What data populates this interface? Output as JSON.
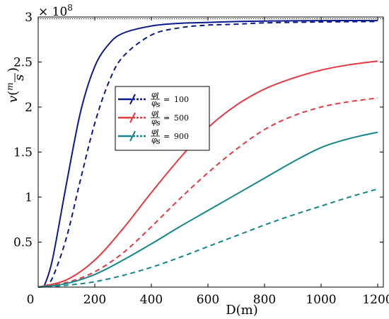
{
  "chart_data": {
    "type": "line",
    "title": "",
    "xlabel": "D(m)",
    "ylabel": "v(m/s)",
    "ylabel_parts": {
      "v": "v",
      "open": "(",
      "num": "m",
      "den": "s",
      "close": ")"
    },
    "multiplier": "× 10",
    "multiplier_exp": "8",
    "xlim": [
      0,
      1220
    ],
    "ylim": [
      0,
      3.0
    ],
    "xticks": [
      0,
      200,
      400,
      600,
      800,
      1000,
      1200
    ],
    "xtick_labels": [
      "0",
      "200",
      "400",
      "600",
      "800",
      "1000",
      "1200"
    ],
    "yticks": [
      0.5,
      1.0,
      1.5,
      2.0,
      2.5,
      3.0
    ],
    "ytick_labels": [
      "0.5",
      "1",
      "1.5",
      "2",
      "2.5",
      "3"
    ],
    "reference_line": {
      "y": 2.98,
      "style": "dotted"
    },
    "legend_position": "center-left",
    "legend": [
      {
        "value": "100",
        "color": "#0a1a8c"
      },
      {
        "value": "500",
        "color": "#e8383d"
      },
      {
        "value": "900",
        "color": "#12868a"
      }
    ],
    "legend_ratio": {
      "num": "φ",
      "num_sub": "l",
      "den": "φ",
      "den_sub": "s",
      "eq": "="
    },
    "series": [
      {
        "name": "",
        "color": "#0a1a8c",
        "dash": "solid",
        "x": [
          20,
          50,
          100,
          150,
          200,
          250,
          300,
          400,
          500,
          600,
          700,
          800,
          1000,
          1200
        ],
        "y": [
          0.0,
          0.3,
          1.15,
          1.95,
          2.45,
          2.7,
          2.82,
          2.9,
          2.93,
          2.94,
          2.95,
          2.955,
          2.96,
          2.96
        ]
      },
      {
        "name": "",
        "color": "#0a1a8c",
        "dash": "dashed",
        "x": [
          20,
          50,
          100,
          150,
          200,
          250,
          300,
          400,
          500,
          600,
          700,
          800,
          1000,
          1200
        ],
        "y": [
          0.0,
          0.1,
          0.55,
          1.2,
          1.82,
          2.28,
          2.56,
          2.8,
          2.88,
          2.91,
          2.92,
          2.935,
          2.945,
          2.95
        ]
      },
      {
        "name": "",
        "color": "#e8383d",
        "dash": "solid",
        "x": [
          0,
          100,
          200,
          300,
          400,
          500,
          600,
          700,
          800,
          900,
          1000,
          1100,
          1200
        ],
        "y": [
          0.0,
          0.08,
          0.3,
          0.65,
          1.05,
          1.43,
          1.77,
          2.02,
          2.2,
          2.32,
          2.41,
          2.47,
          2.51
        ]
      },
      {
        "name": "",
        "color": "#e8383d",
        "dash": "dashed",
        "x": [
          0,
          100,
          200,
          300,
          400,
          500,
          600,
          700,
          800,
          900,
          1000,
          1100,
          1200
        ],
        "y": [
          0.0,
          0.05,
          0.17,
          0.38,
          0.67,
          0.98,
          1.27,
          1.53,
          1.75,
          1.9,
          2.0,
          2.06,
          2.1
        ]
      },
      {
        "name": "",
        "color": "#12868a",
        "dash": "solid",
        "x": [
          0,
          100,
          200,
          300,
          400,
          500,
          600,
          700,
          800,
          900,
          1000,
          1100,
          1200
        ],
        "y": [
          0.0,
          0.04,
          0.14,
          0.3,
          0.48,
          0.67,
          0.85,
          1.03,
          1.21,
          1.39,
          1.55,
          1.65,
          1.72
        ]
      },
      {
        "name": "",
        "color": "#12868a",
        "dash": "dashed",
        "x": [
          0,
          100,
          200,
          300,
          400,
          500,
          600,
          700,
          800,
          900,
          1000,
          1100,
          1200
        ],
        "y": [
          0.0,
          0.02,
          0.06,
          0.13,
          0.22,
          0.33,
          0.45,
          0.57,
          0.69,
          0.8,
          0.9,
          1.0,
          1.09
        ]
      }
    ]
  }
}
